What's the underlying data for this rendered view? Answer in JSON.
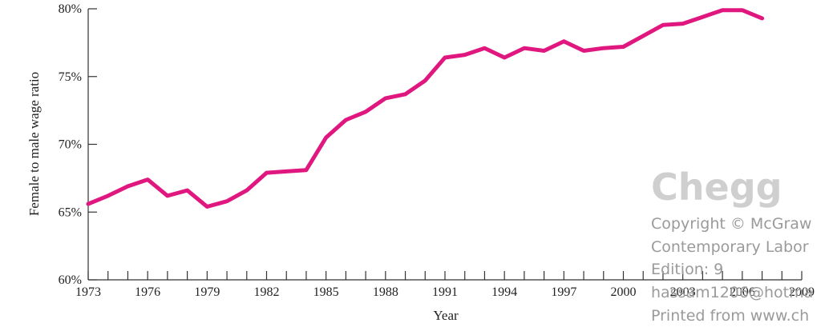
{
  "chart_data": {
    "type": "line",
    "title": "",
    "xlabel": "Year",
    "ylabel": "Female to male wage ratio",
    "xlim": [
      1973,
      2009
    ],
    "ylim": [
      60,
      80
    ],
    "x_ticks": [
      1973,
      1976,
      1979,
      1982,
      1985,
      1988,
      1991,
      1994,
      1997,
      2000,
      2003,
      2006,
      2009
    ],
    "y_ticks": [
      60,
      65,
      70,
      75,
      80
    ],
    "y_tick_labels": [
      "60%",
      "65%",
      "70%",
      "75%",
      "80%"
    ],
    "grid": false,
    "series": [
      {
        "color": "#e0177f",
        "x": [
          1973,
          1974,
          1975,
          1976,
          1977,
          1978,
          1979,
          1980,
          1981,
          1982,
          1983,
          1984,
          1985,
          1986,
          1987,
          1988,
          1989,
          1990,
          1991,
          1992,
          1993,
          1994,
          1995,
          1996,
          1997,
          1998,
          1999,
          2000,
          2001,
          2002,
          2003,
          2004,
          2005,
          2006,
          2007
        ],
        "y": [
          65.6,
          66.2,
          66.9,
          67.4,
          66.2,
          66.6,
          65.4,
          65.8,
          66.6,
          67.9,
          68.0,
          68.1,
          70.5,
          71.8,
          72.4,
          73.4,
          73.7,
          74.7,
          76.4,
          76.6,
          77.1,
          76.4,
          77.1,
          76.9,
          77.6,
          76.9,
          77.1,
          77.2,
          78.0,
          78.8,
          78.9,
          79.4,
          79.9,
          79.9,
          79.3
        ]
      }
    ]
  },
  "watermark": {
    "logo": "Chegg",
    "lines": [
      "Copyright © McGraw",
      "Contemporary Labor",
      "Edition: 9",
      "hassam1206@hotma",
      "Printed from www.ch"
    ]
  }
}
